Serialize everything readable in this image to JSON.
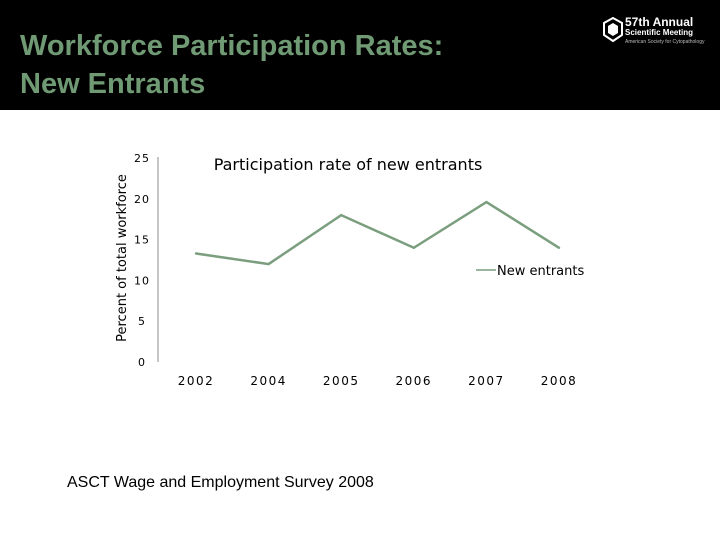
{
  "slide": {
    "title_line1": "Workforce Participation Rates:",
    "title_line2": "New Entrants",
    "logo": {
      "line1": "57th Annual",
      "line2": "Scientific Meeting",
      "line3": "American Society for Cytopathology",
      "icon": "hexagon-emblem-icon"
    },
    "source": "ASCT Wage and Employment Survey 2008"
  },
  "colors": {
    "header_bg": "#000000",
    "title": "#6f9a74",
    "series_line": "#7a9e7e",
    "axis": "#8c8c8c"
  },
  "chart_data": {
    "type": "line",
    "title": "Participation rate of new entrants",
    "xlabel": "",
    "ylabel": "Percent of total workforce",
    "categories": [
      "2002",
      "2004",
      "2005",
      "2006",
      "2007",
      "2008"
    ],
    "series": [
      {
        "name": "New entrants",
        "values": [
          13.3,
          12,
          18,
          14,
          19.6,
          14
        ]
      }
    ],
    "ylim": [
      0,
      25
    ],
    "yticks": [
      "0",
      "5",
      "10",
      "15",
      "20",
      "25"
    ],
    "grid": false,
    "legend": "right"
  }
}
